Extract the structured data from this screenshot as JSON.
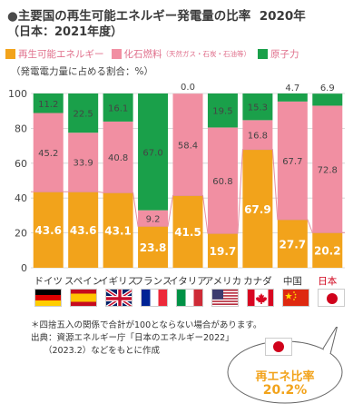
{
  "header": {
    "title": "主要国の再生可能エネルギー発電量の比率",
    "year": "2020年",
    "subtitle": "（日本：2021年度）"
  },
  "legend": {
    "items": [
      {
        "label": "再生可能エネルギー",
        "color": "#f2a31b"
      },
      {
        "label": "化石燃料",
        "sub": "（天然ガス・石炭・石油等）",
        "color": "#f18fa2"
      },
      {
        "label": "原子力",
        "color": "#1aa04a"
      }
    ]
  },
  "y_axis_caption": "（発電電力量に占める割合：%）",
  "chart_data": {
    "type": "bar",
    "stacked": true,
    "categories": [
      "ドイツ",
      "スペイン",
      "イギリス",
      "フランス",
      "イタリア",
      "アメリカ",
      "カナダ",
      "中国",
      "日本"
    ],
    "series": [
      {
        "name": "再生可能エネルギー",
        "values": [
          43.6,
          43.6,
          43.1,
          23.8,
          41.5,
          19.7,
          67.9,
          27.7,
          20.2
        ]
      },
      {
        "name": "化石燃料",
        "values": [
          45.2,
          33.9,
          40.8,
          9.2,
          58.4,
          60.8,
          16.8,
          67.7,
          72.8
        ]
      },
      {
        "name": "原子力",
        "values": [
          11.2,
          22.5,
          16.1,
          67.0,
          0.0,
          19.5,
          15.3,
          4.7,
          6.9
        ]
      }
    ],
    "ylim": [
      0,
      100
    ],
    "yticks": [
      0,
      20,
      40,
      60,
      80,
      100
    ],
    "highlight_category": "日本",
    "colors": {
      "renewable": "#f2a31b",
      "fossil": "#f18fa2",
      "nuclear": "#1aa04a",
      "highlight": "#d0021b"
    }
  },
  "notes": {
    "line1": "＊四捨五入の関係で合計が100とならない場合があります。",
    "line2": "出典：資源エネルギー庁「日本のエネルギー2022」",
    "line3": "（2023.2）などをもとに作成"
  },
  "callout": {
    "title": "再エネ比率",
    "value": "20.2%"
  }
}
